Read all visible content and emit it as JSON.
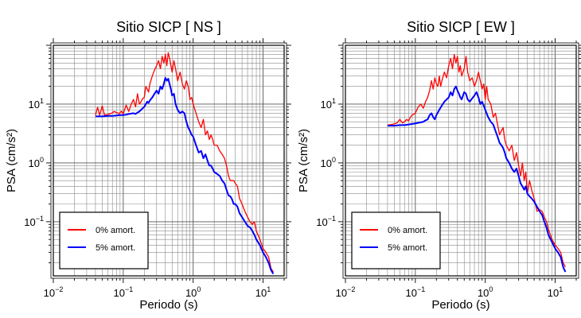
{
  "chart_data": [
    {
      "type": "line",
      "title": "Sitio SICP [ NS ]",
      "xlabel": "Periodo (s)",
      "ylabel": "PSA (cm/s²)",
      "x_scale": "log",
      "y_scale": "log",
      "xlim": [
        0.01,
        20
      ],
      "ylim": [
        0.012,
        100
      ],
      "grid": true,
      "legend_position": "bottom-left",
      "x_ticks": [
        {
          "value": 0.01,
          "base": "10",
          "exp": "−2"
        },
        {
          "value": 0.1,
          "base": "10",
          "exp": "−1"
        },
        {
          "value": 1,
          "base": "10",
          "exp": "0"
        },
        {
          "value": 10,
          "base": "10",
          "exp": "1"
        }
      ],
      "y_ticks": [
        {
          "value": 0.1,
          "base": "10",
          "exp": "−1"
        },
        {
          "value": 1,
          "base": "10",
          "exp": "0"
        },
        {
          "value": 10,
          "base": "10",
          "exp": "1"
        }
      ],
      "series": [
        {
          "name": "0% amort.",
          "color": "#ff0000",
          "x": [
            0.04,
            0.043,
            0.046,
            0.05,
            0.054,
            0.058,
            0.063,
            0.068,
            0.074,
            0.08,
            0.087,
            0.094,
            0.1,
            0.11,
            0.12,
            0.13,
            0.14,
            0.15,
            0.16,
            0.17,
            0.18,
            0.19,
            0.2,
            0.21,
            0.22,
            0.23,
            0.24,
            0.26,
            0.28,
            0.3,
            0.32,
            0.34,
            0.36,
            0.38,
            0.4,
            0.42,
            0.44,
            0.46,
            0.48,
            0.5,
            0.53,
            0.56,
            0.6,
            0.65,
            0.7,
            0.75,
            0.8,
            0.85,
            0.9,
            0.95,
            1.0,
            1.1,
            1.2,
            1.3,
            1.4,
            1.5,
            1.6,
            1.7,
            1.8,
            1.9,
            2.0,
            2.2,
            2.4,
            2.6,
            2.8,
            3.0,
            3.2,
            3.4,
            3.6,
            3.8,
            4.0,
            4.3,
            4.6,
            5.0,
            5.5,
            6.0,
            6.5,
            7.0,
            7.5,
            8.0,
            9.0,
            10.0,
            11.0,
            12.0,
            13.0,
            14.0
          ],
          "y": [
            6.5,
            8.8,
            6.5,
            9.3,
            6.5,
            6.6,
            6.8,
            7.0,
            7.5,
            7.2,
            6.9,
            7.6,
            6.8,
            9.6,
            7.5,
            10.0,
            12.0,
            9.0,
            15.0,
            10.0,
            11.0,
            12.5,
            13.0,
            20.0,
            18.0,
            16.0,
            22.0,
            30.0,
            38.0,
            45.0,
            55.0,
            40.0,
            65.0,
            50.0,
            70.0,
            45.0,
            75.0,
            60.0,
            45.0,
            35.0,
            55.0,
            40.0,
            25.0,
            35.0,
            22.0,
            18.0,
            25.0,
            20.0,
            12.0,
            13.0,
            10.0,
            7.0,
            5.0,
            4.0,
            5.5,
            3.0,
            3.5,
            2.5,
            3.0,
            2.5,
            2.0,
            2.0,
            1.6,
            1.4,
            1.2,
            0.9,
            0.6,
            0.5,
            0.5,
            0.5,
            0.45,
            0.4,
            0.25,
            0.2,
            0.15,
            0.12,
            0.1,
            0.09,
            0.1,
            0.07,
            0.05,
            0.035,
            0.03,
            0.025,
            0.016,
            0.014
          ]
        },
        {
          "name": "5% amort.",
          "color": "#0000ff",
          "x": [
            0.04,
            0.05,
            0.06,
            0.07,
            0.08,
            0.09,
            0.1,
            0.11,
            0.12,
            0.13,
            0.14,
            0.15,
            0.16,
            0.17,
            0.18,
            0.19,
            0.2,
            0.21,
            0.22,
            0.23,
            0.24,
            0.26,
            0.28,
            0.3,
            0.32,
            0.34,
            0.36,
            0.38,
            0.4,
            0.42,
            0.44,
            0.46,
            0.48,
            0.5,
            0.53,
            0.56,
            0.6,
            0.65,
            0.7,
            0.75,
            0.8,
            0.85,
            0.9,
            0.95,
            1.0,
            1.1,
            1.2,
            1.3,
            1.4,
            1.5,
            1.6,
            1.7,
            1.8,
            1.9,
            2.0,
            2.2,
            2.4,
            2.6,
            2.8,
            3.0,
            3.2,
            3.4,
            3.6,
            3.8,
            4.0,
            4.3,
            4.6,
            5.0,
            5.5,
            6.0,
            6.5,
            7.0,
            7.5,
            8.0,
            9.0,
            10.0,
            11.0,
            12.0,
            13.0,
            14.0
          ],
          "y": [
            6.2,
            6.2,
            6.3,
            6.3,
            6.4,
            6.5,
            6.5,
            6.6,
            6.8,
            6.9,
            7.0,
            6.8,
            7.2,
            7.5,
            8.0,
            8.5,
            9.0,
            10.0,
            11.0,
            10.5,
            11.5,
            13.0,
            15.0,
            17.0,
            15.0,
            20.0,
            18.0,
            22.0,
            28.0,
            25.0,
            27.0,
            22.0,
            18.0,
            14.0,
            15.0,
            10.0,
            8.0,
            7.0,
            7.5,
            7.0,
            5.0,
            4.0,
            3.5,
            3.0,
            2.8,
            2.0,
            1.5,
            1.6,
            1.2,
            1.4,
            1.1,
            0.9,
            0.9,
            0.8,
            0.7,
            0.65,
            0.6,
            0.5,
            0.45,
            0.35,
            0.28,
            0.27,
            0.24,
            0.2,
            0.2,
            0.18,
            0.14,
            0.12,
            0.1,
            0.085,
            0.08,
            0.07,
            0.06,
            0.05,
            0.04,
            0.03,
            0.025,
            0.02,
            0.015,
            0.013
          ]
        }
      ]
    },
    {
      "type": "line",
      "title": "Sitio SICP [ EW ]",
      "xlabel": "Periodo (s)",
      "ylabel": "PSA (cm/s²)",
      "x_scale": "log",
      "y_scale": "log",
      "xlim": [
        0.01,
        20
      ],
      "ylim": [
        0.012,
        100
      ],
      "grid": true,
      "legend_position": "bottom-left",
      "x_ticks": [
        {
          "value": 0.01,
          "base": "10",
          "exp": "−2"
        },
        {
          "value": 0.1,
          "base": "10",
          "exp": "−1"
        },
        {
          "value": 1,
          "base": "10",
          "exp": "0"
        },
        {
          "value": 10,
          "base": "10",
          "exp": "1"
        }
      ],
      "y_ticks": [
        {
          "value": 0.1,
          "base": "10",
          "exp": "−1"
        },
        {
          "value": 1,
          "base": "10",
          "exp": "0"
        },
        {
          "value": 10,
          "base": "10",
          "exp": "1"
        }
      ],
      "series": [
        {
          "name": "0% amort.",
          "color": "#ff0000",
          "x": [
            0.04,
            0.045,
            0.05,
            0.055,
            0.06,
            0.065,
            0.07,
            0.075,
            0.08,
            0.085,
            0.09,
            0.1,
            0.11,
            0.12,
            0.13,
            0.14,
            0.15,
            0.16,
            0.17,
            0.18,
            0.19,
            0.2,
            0.21,
            0.22,
            0.23,
            0.24,
            0.26,
            0.28,
            0.3,
            0.32,
            0.34,
            0.36,
            0.38,
            0.4,
            0.42,
            0.44,
            0.46,
            0.48,
            0.5,
            0.53,
            0.56,
            0.6,
            0.65,
            0.7,
            0.75,
            0.8,
            0.85,
            0.9,
            0.95,
            1.0,
            1.05,
            1.1,
            1.2,
            1.3,
            1.4,
            1.5,
            1.6,
            1.7,
            1.8,
            1.9,
            2.0,
            2.2,
            2.4,
            2.6,
            2.8,
            3.0,
            3.2,
            3.4,
            3.6,
            3.8,
            4.0,
            4.3,
            4.6,
            5.0,
            5.5,
            6.0,
            6.5,
            7.0,
            7.5,
            8.0,
            9.0,
            10.0,
            11.0,
            12.0,
            13.0,
            14.0
          ],
          "y": [
            4.4,
            4.5,
            4.6,
            4.8,
            5.5,
            4.8,
            5.0,
            5.5,
            5.2,
            6.0,
            6.5,
            7.0,
            9.0,
            10.0,
            8.5,
            11.0,
            13.0,
            17.0,
            25.0,
            18.0,
            28.0,
            22.0,
            20.0,
            30.0,
            20.0,
            25.0,
            35.0,
            28.0,
            45.0,
            60.0,
            40.0,
            70.0,
            50.0,
            65.0,
            35.0,
            45.0,
            30.0,
            35.0,
            40.0,
            65.0,
            35.0,
            25.0,
            28.0,
            20.0,
            25.0,
            35.0,
            25.0,
            18.0,
            22.0,
            12.0,
            20.0,
            12.0,
            10.0,
            6.0,
            7.0,
            4.5,
            3.0,
            3.5,
            4.0,
            2.5,
            2.0,
            1.6,
            2.0,
            1.1,
            1.5,
            0.9,
            0.6,
            1.0,
            0.5,
            0.7,
            0.3,
            0.5,
            0.35,
            0.25,
            0.15,
            0.16,
            0.15,
            0.12,
            0.1,
            0.075,
            0.05,
            0.04,
            0.035,
            0.03,
            0.02,
            0.017
          ]
        },
        {
          "name": "5% amort.",
          "color": "#0000ff",
          "x": [
            0.04,
            0.05,
            0.06,
            0.07,
            0.08,
            0.09,
            0.1,
            0.11,
            0.12,
            0.13,
            0.14,
            0.15,
            0.16,
            0.17,
            0.18,
            0.19,
            0.2,
            0.22,
            0.24,
            0.26,
            0.28,
            0.3,
            0.32,
            0.34,
            0.36,
            0.38,
            0.4,
            0.42,
            0.44,
            0.46,
            0.48,
            0.5,
            0.53,
            0.56,
            0.6,
            0.65,
            0.7,
            0.75,
            0.8,
            0.85,
            0.9,
            0.95,
            1.0,
            1.1,
            1.2,
            1.3,
            1.4,
            1.5,
            1.6,
            1.7,
            1.8,
            1.9,
            2.0,
            2.2,
            2.4,
            2.6,
            2.8,
            3.0,
            3.2,
            3.4,
            3.6,
            3.8,
            4.0,
            4.3,
            4.6,
            5.0,
            5.5,
            6.0,
            6.5,
            7.0,
            7.5,
            8.0,
            9.0,
            10.0,
            11.0,
            12.0,
            13.0,
            14.0
          ],
          "y": [
            4.3,
            4.3,
            4.4,
            4.4,
            4.5,
            4.6,
            4.7,
            4.8,
            4.9,
            5.0,
            5.3,
            5.5,
            6.5,
            7.0,
            6.0,
            5.5,
            6.5,
            8.0,
            9.5,
            11.0,
            12.0,
            13.0,
            16.0,
            14.0,
            18.0,
            20.0,
            17.0,
            15.0,
            13.0,
            12.0,
            14.0,
            16.0,
            15.0,
            12.0,
            11.0,
            12.5,
            14.0,
            16.0,
            13.0,
            10.0,
            11.0,
            9.5,
            8.0,
            6.0,
            5.0,
            4.5,
            3.5,
            2.8,
            2.2,
            2.0,
            1.8,
            1.5,
            1.2,
            1.0,
            0.8,
            0.7,
            0.8,
            0.6,
            0.45,
            0.4,
            0.35,
            0.4,
            0.3,
            0.27,
            0.25,
            0.22,
            0.18,
            0.15,
            0.13,
            0.1,
            0.08,
            0.06,
            0.045,
            0.035,
            0.03,
            0.025,
            0.017,
            0.014
          ]
        }
      ]
    }
  ]
}
